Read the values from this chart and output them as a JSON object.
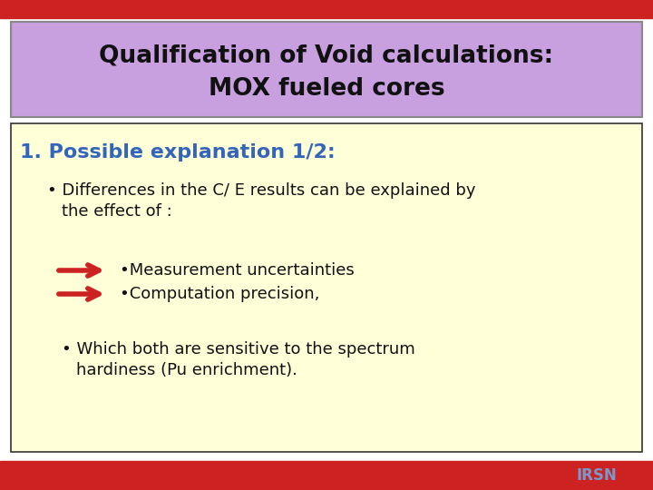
{
  "title_line1": "Qualification of Void calculations:",
  "title_line2": "MOX fueled cores",
  "title_bg": "#c8a0e0",
  "title_border": "#888888",
  "slide_bg": "#ffffff",
  "content_bg": "#ffffd8",
  "content_border": "#333333",
  "top_bar_color": "#cc2222",
  "bottom_bar_color": "#cc2222",
  "irsn_text_color": "#7799cc",
  "section_heading": "1. Possible explanation 1/2:",
  "section_heading_color": "#3366bb",
  "arrow_color": "#cc2222",
  "sub_bullet1": "•Measurement uncertainties",
  "sub_bullet2": "•Computation precision,",
  "text_color": "#111111",
  "title_fontsize": 19,
  "heading_fontsize": 16,
  "body_fontsize": 13,
  "irsn_fontsize": 12
}
